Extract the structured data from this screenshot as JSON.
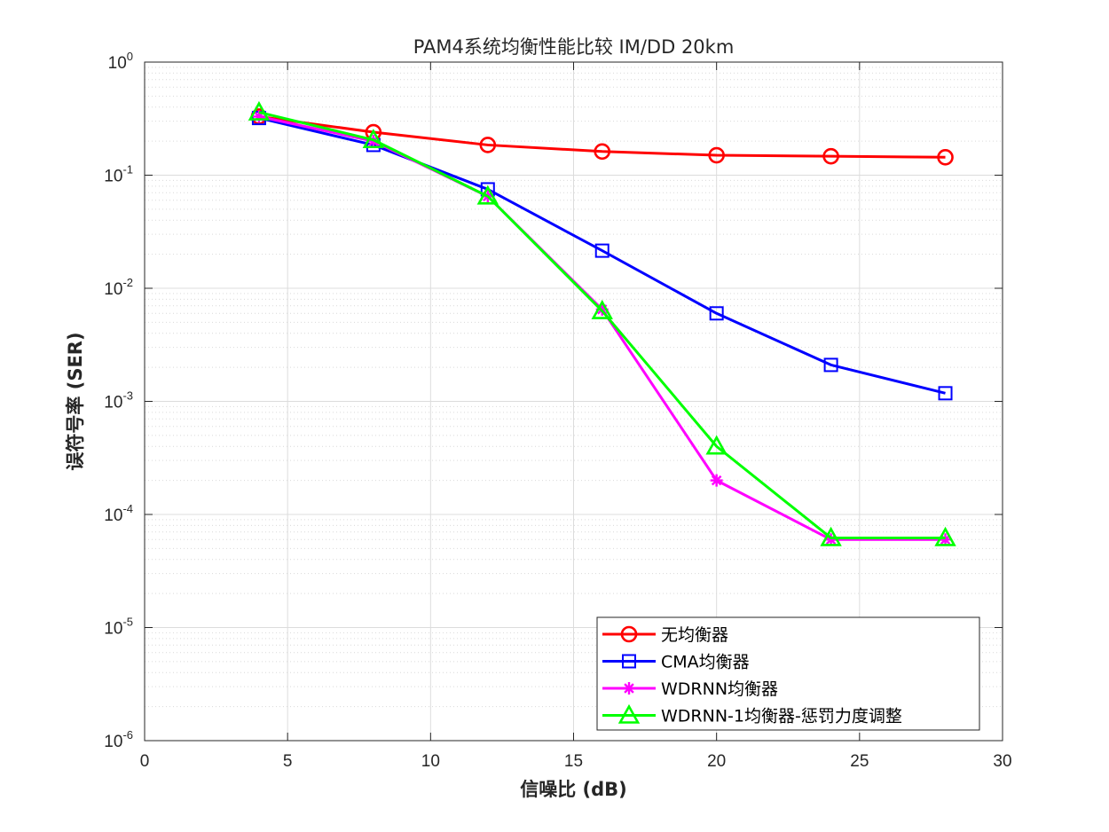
{
  "chart_data": {
    "type": "line",
    "title": "PAM4系统均衡性能比较 IM/DD 20km",
    "xlabel": "信噪比 (dB)",
    "ylabel": "误符号率 (SER)",
    "xlim": [
      0,
      30
    ],
    "ylim": [
      1e-06,
      1
    ],
    "yscale": "log",
    "grid": true,
    "minor_grid": true,
    "legend_position": "bottom-right",
    "x_ticks": [
      "0",
      "5",
      "10",
      "15",
      "20",
      "25",
      "30"
    ],
    "y_ticks": [
      {
        "base": "10",
        "exp": "0"
      },
      {
        "base": "10",
        "exp": "-1"
      },
      {
        "base": "10",
        "exp": "-2"
      },
      {
        "base": "10",
        "exp": "-3"
      },
      {
        "base": "10",
        "exp": "-4"
      },
      {
        "base": "10",
        "exp": "-5"
      },
      {
        "base": "10",
        "exp": "-6"
      }
    ],
    "x": [
      4,
      8,
      12,
      16,
      20,
      24,
      28
    ],
    "series": [
      {
        "name": "无均衡器",
        "color": "#ff0000",
        "marker": "circle",
        "values": [
          0.33,
          0.24,
          0.185,
          0.162,
          0.15,
          0.147,
          0.144
        ]
      },
      {
        "name": "CMA均衡器",
        "color": "#0000ff",
        "marker": "square",
        "values": [
          0.32,
          0.185,
          0.075,
          0.0215,
          0.006,
          0.0021,
          0.00118
        ]
      },
      {
        "name": "WDRNN均衡器",
        "color": "#ff00ff",
        "marker": "asterisk",
        "values": [
          0.33,
          0.2,
          0.065,
          0.0065,
          0.0002,
          6e-05,
          6e-05
        ]
      },
      {
        "name": "WDRNN-1均衡器-惩罚力度调整",
        "color": "#00ff00",
        "marker": "triangle",
        "values": [
          0.36,
          0.205,
          0.065,
          0.0063,
          0.0004,
          6.2e-05,
          6.2e-05
        ]
      }
    ]
  }
}
